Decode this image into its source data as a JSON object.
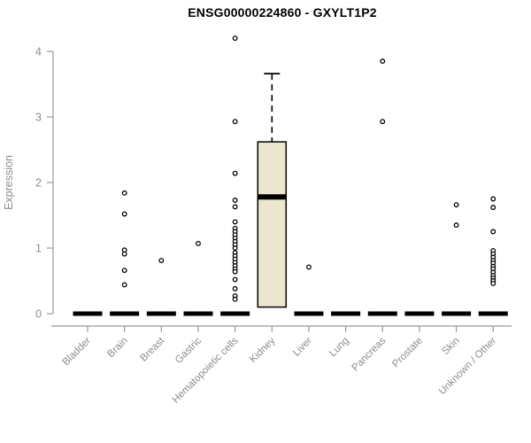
{
  "colors": {
    "background": "#FFFFFF",
    "box_fill": "#EDE6CE",
    "box_border": "#000000",
    "median": "#000000",
    "outlier_stroke": "#000000",
    "outlier_fill": "#FFFFFF",
    "axis_line": "#999999",
    "tick_label": "#8C8C8C",
    "title_text": "#000000"
  },
  "chart_data": {
    "type": "boxplot",
    "title": "ENSG00000224860 - GXYLT1P2",
    "xlabel": "",
    "ylabel": "Expression",
    "ylim": [
      0,
      4.25
    ],
    "yticks": [
      0,
      1,
      2,
      3,
      4
    ],
    "grid": false,
    "legend": "none",
    "categories": [
      "Bladder",
      "Brain",
      "Breast",
      "Gastric",
      "Hematopoietic cells",
      "Kidney",
      "Liver",
      "Lung",
      "Pancreas",
      "Prostate",
      "Skin",
      "Unknown / Other"
    ],
    "boxes": [
      {
        "category": "Bladder",
        "q1": 0,
        "median": 0,
        "q3": 0,
        "whisker_low": 0,
        "whisker_high": 0,
        "outliers": []
      },
      {
        "category": "Brain",
        "q1": 0,
        "median": 0,
        "q3": 0,
        "whisker_low": 0,
        "whisker_high": 0,
        "outliers": [
          1.84,
          1.52,
          0.97,
          0.91,
          0.66,
          0.44
        ]
      },
      {
        "category": "Breast",
        "q1": 0,
        "median": 0,
        "q3": 0,
        "whisker_low": 0,
        "whisker_high": 0,
        "outliers": [
          0.81
        ]
      },
      {
        "category": "Gastric",
        "q1": 0,
        "median": 0,
        "q3": 0,
        "whisker_low": 0,
        "whisker_high": 0,
        "outliers": [
          1.07
        ]
      },
      {
        "category": "Hematopoietic cells",
        "q1": 0,
        "median": 0,
        "q3": 0,
        "whisker_low": 0,
        "whisker_high": 0,
        "outliers": [
          4.2,
          2.93,
          2.14,
          1.73,
          1.63,
          1.4,
          1.3,
          1.25,
          1.2,
          1.15,
          1.1,
          1.05,
          1.0,
          0.93,
          0.88,
          0.83,
          0.78,
          0.73,
          0.68,
          0.64,
          0.52,
          0.38,
          0.27,
          0.22
        ]
      },
      {
        "category": "Kidney",
        "q1": 0.1,
        "median": 1.78,
        "q3": 2.62,
        "whisker_low": 0.1,
        "whisker_high": 3.66,
        "outliers": []
      },
      {
        "category": "Liver",
        "q1": 0,
        "median": 0,
        "q3": 0,
        "whisker_low": 0,
        "whisker_high": 0,
        "outliers": [
          0.71
        ]
      },
      {
        "category": "Lung",
        "q1": 0,
        "median": 0,
        "q3": 0,
        "whisker_low": 0,
        "whisker_high": 0,
        "outliers": []
      },
      {
        "category": "Pancreas",
        "q1": 0,
        "median": 0,
        "q3": 0,
        "whisker_low": 0,
        "whisker_high": 0,
        "outliers": [
          3.85,
          2.93
        ]
      },
      {
        "category": "Prostate",
        "q1": 0,
        "median": 0,
        "q3": 0,
        "whisker_low": 0,
        "whisker_high": 0,
        "outliers": []
      },
      {
        "category": "Skin",
        "q1": 0,
        "median": 0,
        "q3": 0,
        "whisker_low": 0,
        "whisker_high": 0,
        "outliers": [
          1.66,
          1.35
        ]
      },
      {
        "category": "Unknown / Other",
        "q1": 0,
        "median": 0,
        "q3": 0,
        "whisker_low": 0,
        "whisker_high": 0,
        "outliers": [
          1.75,
          1.62,
          1.25,
          0.96,
          0.91,
          0.86,
          0.81,
          0.77,
          0.72,
          0.68,
          0.63,
          0.58,
          0.54,
          0.5,
          0.46
        ]
      }
    ]
  }
}
